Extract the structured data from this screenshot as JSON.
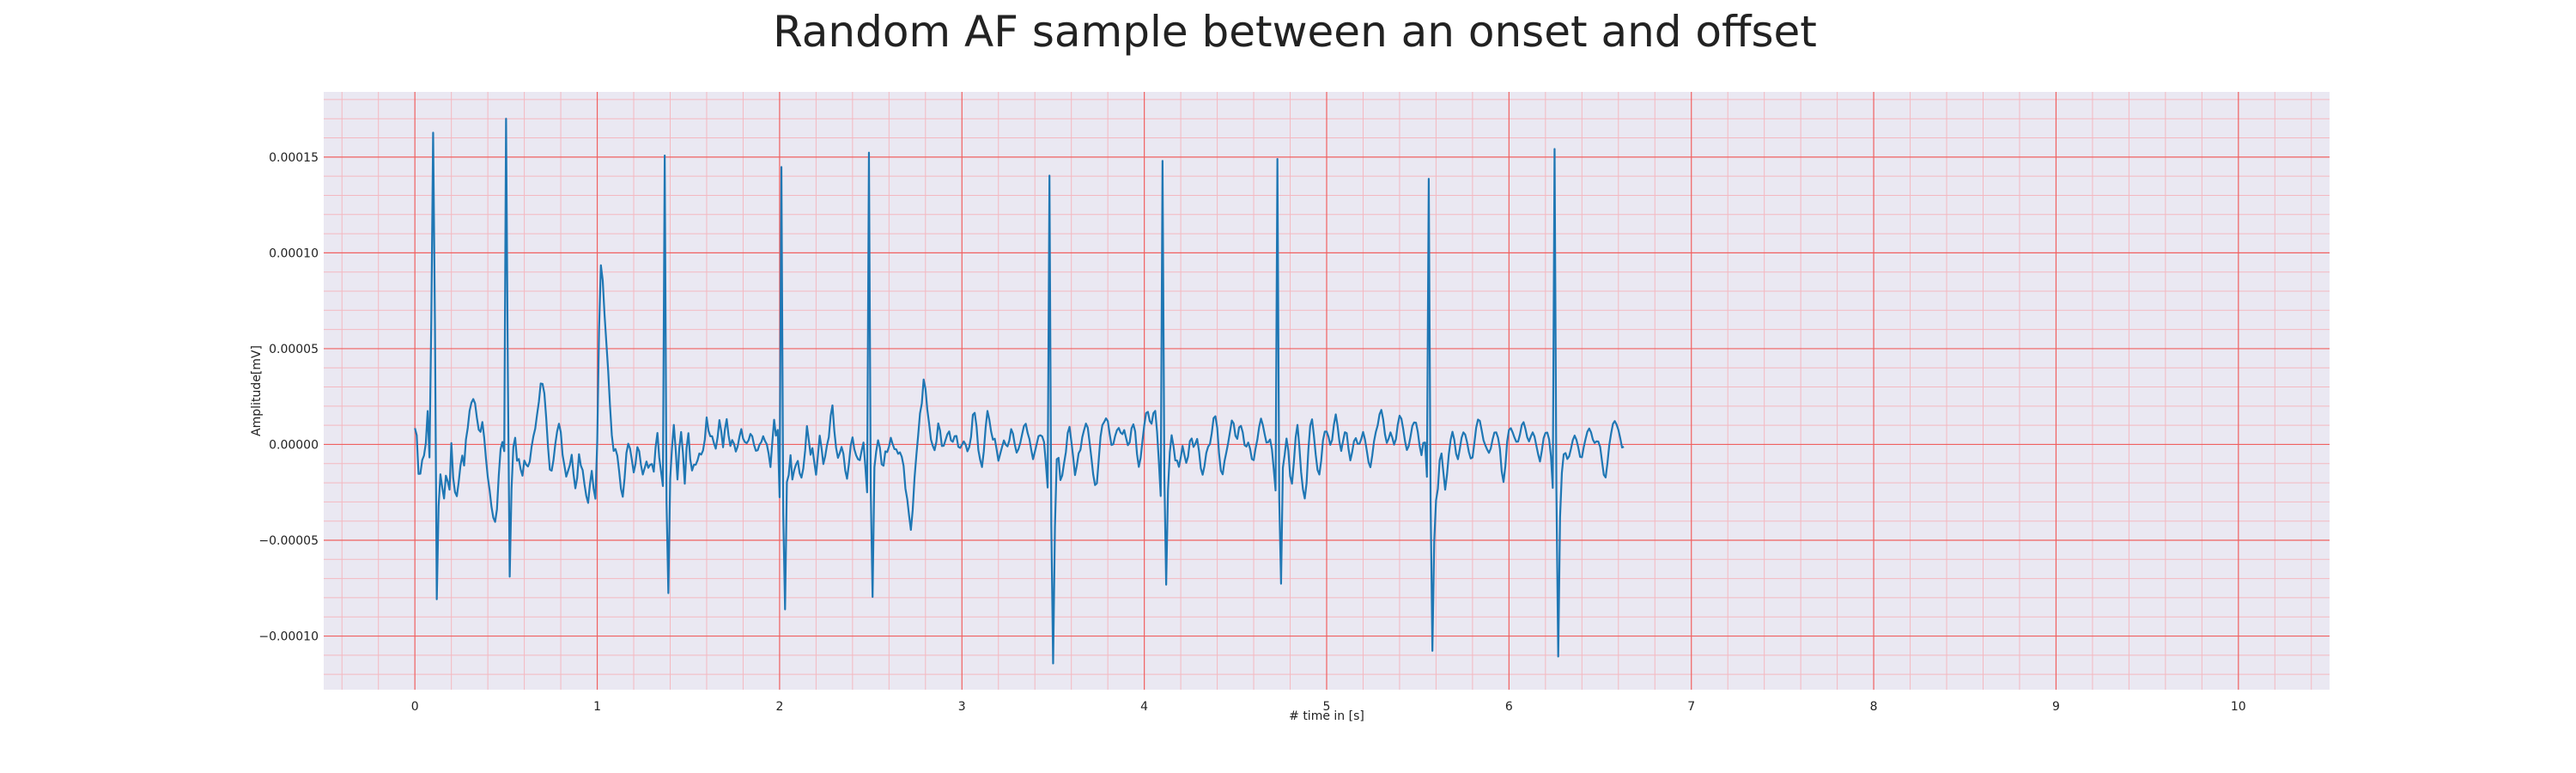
{
  "chart_data": {
    "type": "line",
    "title": "Random AF sample between an onset and offset",
    "xlabel": "# time in [s]",
    "ylabel": "Amplitude[mV]",
    "xlim": [
      -0.5,
      10.5
    ],
    "ylim": [
      -0.000128,
      0.000184
    ],
    "xticks": [
      0,
      1,
      2,
      3,
      4,
      5,
      6,
      7,
      8,
      9,
      10
    ],
    "xtick_labels": [
      "0",
      "1",
      "2",
      "3",
      "4",
      "5",
      "6",
      "7",
      "8",
      "9",
      "10"
    ],
    "yticks": [
      -0.0001,
      -5e-05,
      0,
      5e-05,
      0.0001,
      0.00015
    ],
    "ytick_labels": [
      "−0.00010",
      "−0.00005",
      "0.00000",
      "0.00005",
      "0.00010",
      "0.00015"
    ],
    "grid": {
      "major": true,
      "minor": true,
      "major_color": "#f06060",
      "minor_color": "#f4b8c0"
    },
    "background_color": "#eae8f2",
    "line_color": "#1f77b4",
    "sampling_interval_s": 0.01,
    "series": [
      {
        "values": [
          8.5e-06,
          4.8e-06,
          -1.54e-05,
          -1.53e-05,
          -8.2e-06,
          -5.8e-06,
          7e-07,
          1.74e-05,
          -6.8e-06,
          6.46e-05,
          0.0001627,
          6.32e-05,
          -8.08e-05,
          -3.22e-05,
          -1.56e-05,
          -2.25e-05,
          -2.82e-05,
          -1.63e-05,
          -1.93e-05,
          -2.36e-05,
          7e-07,
          -1.74e-05,
          -2.49e-05,
          -2.7e-05,
          -1.98e-05,
          -1.1e-05,
          -5.8e-06,
          -1.1e-05,
          2.6e-06,
          8.7e-06,
          1.75e-05,
          2.18e-05,
          2.37e-05,
          2.14e-05,
          1.39e-05,
          7.7e-06,
          6.6e-06,
          1.17e-05,
          3.6e-06,
          -7.6e-06,
          -1.72e-05,
          -2.4e-05,
          -3.25e-05,
          -3.82e-05,
          -4.04e-05,
          -3.39e-05,
          -1.62e-05,
          -2.5e-06,
          1.3e-06,
          -3.5e-06,
          0.00017,
          3.46e-05,
          -6.9e-05,
          -2.32e-05,
          -1.3e-06,
          3.5e-06,
          -8.5e-06,
          -7.6e-06,
          -1.3e-05,
          -1.63e-05,
          -8.4e-06,
          -1.05e-05,
          -1.15e-05,
          -9e-06,
          -1.2e-06,
          4.3e-06,
          8.3e-06,
          1.56e-05,
          2.23e-05,
          3.18e-05,
          3.16e-05,
          2.67e-05,
          1.4e-05,
          -1.2e-06,
          -1.31e-05,
          -1.37e-05,
          -8.2e-06,
          2e-07,
          6.8e-06,
          1.08e-05,
          6.5e-06,
          -5.5e-06,
          -1.1e-05,
          -1.68e-05,
          -1.38e-05,
          -1.07e-05,
          -5.4e-06,
          -1.55e-05,
          -2.29e-05,
          -1.74e-05,
          -5.1e-06,
          -1.1e-05,
          -1.34e-05,
          -2.08e-05,
          -2.69e-05,
          -3.05e-05,
          -2.07e-05,
          -1.38e-05,
          -2.3e-05,
          -2.83e-05,
          1.6e-06,
          6.01e-05,
          9.35e-05,
          8.57e-05,
          6.78e-05,
          5.31e-05,
          3.84e-05,
          2.02e-05,
          4.8e-06,
          -3.4e-06,
          -2.4e-06,
          -5.8e-06,
          -1.39e-05,
          -2.31e-05,
          -2.73e-05,
          -1.75e-05,
          -4.5e-06,
          4e-07,
          -2.2e-06,
          -8.2e-06,
          -1.46e-05,
          -1e-05,
          -1.4e-06,
          -3.5e-06,
          -1.08e-05,
          -1.57e-05,
          -1.24e-05,
          -8.9e-06,
          -1.22e-05,
          -1.06e-05,
          -1.02e-05,
          -1.42e-05,
          -1.5e-06,
          6e-06,
          -6.8e-06,
          -1.42e-05,
          -2.17e-05,
          0.0001508,
          -3.05e-05,
          -7.76e-05,
          -1.8e-05,
          -1.8e-06,
          1.02e-05,
          -2.4e-06,
          -1.83e-05,
          -1.9e-06,
          6.5e-06,
          -4.5e-06,
          -2.05e-05,
          -1.8e-06,
          5.9e-06,
          -7.7e-06,
          -1.36e-05,
          -1.06e-05,
          -1.06e-05,
          -8.3e-06,
          -4.7e-06,
          -5.3e-06,
          -3.2e-06,
          2.5e-06,
          1.41e-05,
          7.2e-06,
          4.3e-06,
          4.3e-06,
          6e-07,
          -2.2e-06,
          3.7e-06,
          1.27e-05,
          6.9e-06,
          -1.5e-06,
          7.8e-06,
          1.32e-05,
          4.8e-06,
          -8e-07,
          2.3e-06,
          4e-07,
          -3.7e-06,
          -1.1e-06,
          4.1e-06,
          8e-06,
          3e-06,
          1.2e-06,
          7e-07,
          2.2e-06,
          5.5e-06,
          4.3e-06,
          -3e-07,
          -3.3e-06,
          -3e-06,
          -1e-07,
          1.3e-06,
          4.3e-06,
          1.8e-06,
          1e-07,
          -4.9e-06,
          -1.18e-05,
          1e-06,
          1.29e-05,
          4.6e-06,
          7.6e-06,
          -2.76e-05,
          0.0001448,
          -3.64e-05,
          -8.61e-05,
          -1.96e-05,
          -1.6e-05,
          -5.6e-06,
          -1.83e-05,
          -1.35e-05,
          -1.05e-05,
          -8.6e-06,
          -1.5e-05,
          -1.73e-05,
          -1.25e-05,
          -3.3e-06,
          9.6e-06,
          2.4e-06,
          -5.4e-06,
          -1.9e-06,
          -9.1e-06,
          -1.58e-05,
          -5.9e-06,
          4.6e-06,
          -1.8e-06,
          -1.02e-05,
          -6.2e-06,
          -4e-07,
          3.8e-06,
          1.49e-05,
          2.04e-05,
          7.3e-06,
          -1.9e-06,
          -7e-06,
          -4.5e-06,
          -1.3e-06,
          -4.9e-06,
          -1.36e-05,
          -1.79e-05,
          -1.03e-05,
          -6e-07,
          3.7e-06,
          -2.5e-06,
          -5.7e-06,
          -7.7e-06,
          -8.2e-06,
          -3.2e-06,
          1e-06,
          -1.12e-05,
          -2.5e-05,
          0.0001523,
          -2.46e-05,
          -7.96e-05,
          -1.19e-05,
          -3.5e-06,
          2.2e-06,
          -1.7e-06,
          -1.04e-05,
          -1.11e-05,
          -3.6e-06,
          -4e-06,
          -1.2e-06,
          3.5e-06,
          2e-07,
          -2.4e-06,
          -2.6e-06,
          -4.9e-06,
          -4.1e-06,
          -6.4e-06,
          -1.12e-05,
          -2.3e-05,
          -2.85e-05,
          -3.7e-05,
          -4.46e-05,
          -3.42e-05,
          -1.75e-05,
          -5.7e-06,
          4.8e-06,
          1.62e-05,
          2.14e-05,
          3.39e-05,
          2.91e-05,
          1.83e-05,
          1.09e-05,
          2.6e-06,
          -7e-07,
          -3e-06,
          1.5e-06,
          1.1e-05,
          7.2e-06,
          -8e-07,
          -7e-07,
          2.3e-06,
          5.3e-06,
          6.8e-06,
          2.1e-06,
          1.4e-06,
          4.3e-06,
          4.4e-06,
          -1.2e-06,
          -1.8e-06,
          -2e-07,
          1.6e-06,
          0.0,
          -3.6e-06,
          -1.4e-06,
          4e-06,
          1.55e-05,
          1.65e-05,
          9.5e-06,
          -2.9e-06,
          -8.1e-06,
          -1.18e-05,
          -3.5e-06,
          8.9e-06,
          1.75e-05,
          1.3e-05,
          6.7e-06,
          2.5e-06,
          3e-06,
          -2.5e-06,
          -8.5e-06,
          -4.9e-06,
          -1.3e-06,
          2.1e-06,
          -1e-07,
          -1e-06,
          2.1e-06,
          8e-06,
          5.6e-06,
          -2e-07,
          -4.3e-06,
          -2.4e-06,
          8e-07,
          5.3e-06,
          9.6e-06,
          1.08e-05,
          6.1e-06,
          2.8e-06,
          -2.8e-06,
          -7.7e-06,
          -3.8e-06,
          2e-07,
          4.3e-06,
          4.8e-06,
          4.2e-06,
          1.3e-06,
          -9.5e-06,
          -2.25e-05,
          0.0001403,
          -4.15e-05,
          -0.0001143,
          -4.31e-05,
          -7.7e-06,
          -7e-06,
          -1.86e-05,
          -1.62e-05,
          -9.8e-06,
          -4e-06,
          6e-06,
          9.2e-06,
          1.6e-06,
          -6.5e-06,
          -1.6e-05,
          -1.11e-05,
          -4.6e-06,
          -2.8e-06,
          3.8e-06,
          7.6e-06,
          1.09e-05,
          8.8e-06,
          1.1e-06,
          -7.1e-06,
          -1.58e-05,
          -2.12e-05,
          -2.03e-05,
          -8.2e-06,
          4e-06,
          1.01e-05,
          1.17e-05,
          1.36e-05,
          1.22e-05,
          5.5e-06,
          -3e-07,
          1e-07,
          4.4e-06,
          7.4e-06,
          8.6e-06,
          6.2e-06,
          5.4e-06,
          7.5e-06,
          3.4e-06,
          -4e-07,
          1.1e-06,
          8.4e-06,
          1.05e-05,
          6.8e-06,
          -5e-06,
          -1.17e-05,
          -7e-06,
          1.8e-06,
          1.01e-05,
          1.64e-05,
          1.7e-05,
          1.22e-05,
          1.08e-05,
          1.63e-05,
          1.75e-05,
          6.7e-06,
          -9.3e-06,
          -2.69e-05,
          0.000148,
          -1.65e-05,
          -7.32e-05,
          -2.38e-05,
          -4.1e-06,
          4.8e-06,
          -7e-07,
          -8.3e-06,
          -8.4e-06,
          -1.17e-05,
          -6.8e-06,
          -8e-07,
          -5.5e-06,
          -9.6e-06,
          -6.4e-06,
          1.7e-06,
          3.1e-06,
          -1.3e-06,
          4e-07,
          2.9e-06,
          -3.4e-06,
          -1.25e-05,
          -1.58e-05,
          -1.13e-05,
          -4.4e-06,
          -1.2e-06,
          2e-07,
          5.9e-06,
          1.37e-05,
          1.47e-05,
          8.7e-06,
          -4.8e-06,
          -1.37e-05,
          -1.56e-05,
          -8.7e-06,
          -4.1e-06,
          8e-07,
          6.6e-06,
          1.25e-05,
          1.1e-05,
          4.5e-06,
          2.9e-06,
          8.9e-06,
          9.7e-06,
          6.3e-06,
          -4e-07,
          -1.1e-06,
          1e-06,
          -2.2e-06,
          -7.6e-06,
          -8.2e-06,
          -2.2e-06,
          2.5e-06,
          9.2e-06,
          1.35e-05,
          1.02e-05,
          5.4e-06,
          1e-06,
          1.2e-06,
          2.6e-06,
          -2.5e-06,
          -1.3e-05,
          -2.4e-05,
          0.000149,
          -2.83e-05,
          -7.27e-05,
          -1.22e-05,
          -5.3e-06,
          3.1e-06,
          -3.3e-06,
          -1.66e-05,
          -2.05e-05,
          -9.7e-06,
          3.6e-06,
          1.02e-05,
          -7e-07,
          -1.44e-05,
          -2.34e-05,
          -2.82e-05,
          -2.02e-05,
          -2.6e-06,
          9.9e-06,
          1.31e-05,
          4.8e-06,
          -5.3e-06,
          -1.33e-05,
          -1.57e-05,
          -8.6e-06,
          2.2e-06,
          6.7e-06,
          6.7e-06,
          4.1e-06,
          -2e-07,
          2.3e-06,
          1.04e-05,
          1.57e-05,
          9.7e-06,
          1.5e-06,
          -3.4e-06,
          1.8e-06,
          6.4e-06,
          5.9e-06,
          -2.4e-06,
          -8.3e-06,
          -4e-06,
          1.7e-06,
          3.3e-06,
          3e-07,
          3e-07,
          2.9e-06,
          6.5e-06,
          2.7e-06,
          -3.1e-06,
          -9.3e-06,
          -1.19e-05,
          -5.9e-06,
          1.7e-06,
          6.6e-06,
          1e-05,
          1.57e-05,
          1.8e-05,
          1.31e-05,
          5.2e-06,
          8e-07,
          3e-06,
          6.3e-06,
          3.6e-06,
          -1e-07,
          2.8e-06,
          1.03e-05,
          1.5e-05,
          1.34e-05,
          8e-06,
          1.6e-06,
          -2.9e-06,
          -9e-07,
          4.1e-06,
          9.7e-06,
          1.15e-05,
          1.13e-05,
          6.5e-06,
          -8e-07,
          -5.6e-06,
          8e-07,
          1e-06,
          -1.69e-05,
          0.0001386,
          -2.9e-05,
          -0.0001077,
          -5.04e-05,
          -2.92e-05,
          -2.32e-05,
          -8.2e-06,
          -4.7e-06,
          -1.44e-05,
          -2.36e-05,
          -1.59e-05,
          -5.2e-06,
          2.4e-06,
          6.6e-06,
          2.5e-06,
          -4.9e-06,
          -7.7e-06,
          -2.5e-06,
          3.5e-06,
          6.3e-06,
          5.1e-06,
          1.2e-06,
          -4e-06,
          -7.3e-06,
          -6.8e-06,
          6e-07,
          8.7e-06,
          1.3e-05,
          1.23e-05,
          7.5e-06,
          2.3e-06,
          -4e-07,
          -2.6e-06,
          -4.4e-06,
          -2.2e-06,
          2.6e-06,
          6.2e-06,
          6.3e-06,
          3.5e-06,
          -2.1e-06,
          -1.4e-05,
          -1.96e-05,
          -1.14e-05,
          1.5e-06,
          7.6e-06,
          8.5e-06,
          6.3e-06,
          3.6e-06,
          1.4e-06,
          1.5e-06,
          5.1e-06,
          1.01e-05,
          1.16e-05,
          8.2e-06,
          3.7e-06,
          1.6e-06,
          4.2e-06,
          6.3e-06,
          4.1e-06,
          -6e-07,
          -5.2e-06,
          -8.9e-06,
          -3.4e-06,
          3.3e-06,
          6e-06,
          6.2e-06,
          2.7e-06,
          -6e-06,
          -2.27e-05,
          0.0001542,
          -2.41e-05,
          -0.0001107,
          -3.8e-05,
          -1.48e-05,
          -5.2e-06,
          -4.5e-06,
          -7.6e-06,
          -6.2e-06,
          -2.2e-06,
          2.3e-06,
          4.6e-06,
          2.4e-06,
          -1.6e-06,
          -6.5e-06,
          -6.7e-06,
          -1.4e-06,
          2.9e-06,
          6.7e-06,
          8.3e-06,
          6.3e-06,
          2.5e-06,
          8e-07,
          1.6e-06,
          1.5e-06,
          -1.3e-06,
          -8.7e-06,
          -1.58e-05,
          -1.72e-05,
          -9.7e-06,
          -3e-07,
          5.7e-06,
          1.07e-05,
          1.22e-05,
          1.04e-05,
          7.6e-06,
          3.3e-06,
          -1.6e-06,
          -1.2e-06
        ]
      }
    ]
  }
}
